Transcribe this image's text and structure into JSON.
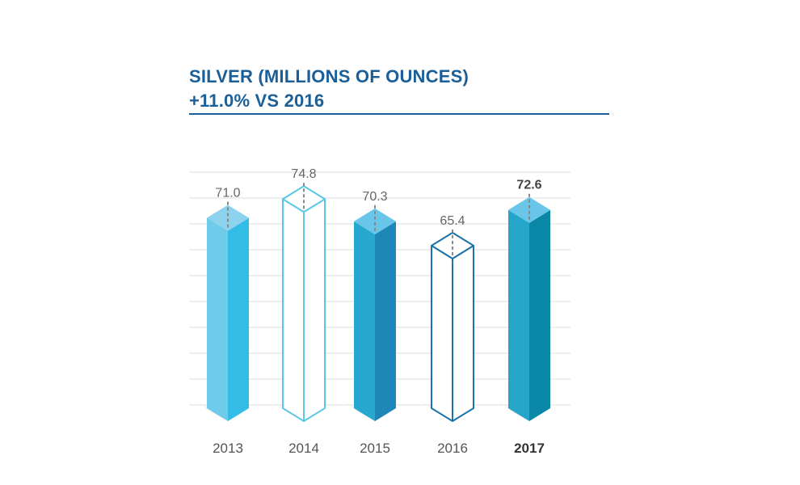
{
  "title": {
    "line1": "SILVER (MILLIONS OF OUNCES)",
    "line2": "+11.0% VS 2016"
  },
  "chart_data": {
    "type": "bar",
    "categories": [
      "2013",
      "2014",
      "2015",
      "2016",
      "2017"
    ],
    "values": [
      71.0,
      74.8,
      70.3,
      65.4,
      72.6
    ],
    "value_labels": [
      "71.0",
      "74.8",
      "70.3",
      "65.4",
      "72.6"
    ],
    "highlight_index": 4,
    "styles": [
      "filled",
      "outline",
      "filled",
      "outline",
      "filled"
    ],
    "colors": [
      {
        "top": "#8ed3ee",
        "left": "#6ecbea",
        "right": "#33bde6",
        "stroke": "#5dc5e9"
      },
      {
        "top": "#ffffff",
        "left": "#ffffff",
        "right": "#ffffff",
        "stroke": "#5cc8e6"
      },
      {
        "top": "#69c6e8",
        "left": "#26a8cf",
        "right": "#1f86b8",
        "stroke": "#1f86b8"
      },
      {
        "top": "#ffffff",
        "left": "#ffffff",
        "right": "#ffffff",
        "stroke": "#1a74aa"
      },
      {
        "top": "#69c6e8",
        "left": "#24a5c9",
        "right": "#0a86a6",
        "stroke": "#0a86a6"
      }
    ],
    "grid": true,
    "xlabel": "",
    "ylabel": ""
  }
}
